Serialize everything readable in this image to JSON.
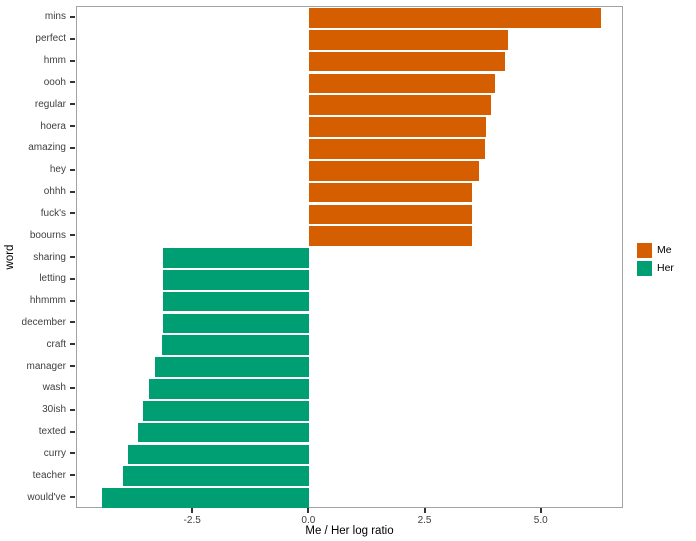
{
  "chart_data": {
    "type": "bar",
    "orientation": "horizontal",
    "title": "",
    "xlabel": "Me / Her log ratio",
    "ylabel": "word",
    "xlim": [
      -5.0,
      6.77
    ],
    "x_ticks": [
      -2.5,
      0,
      2.5,
      5
    ],
    "x_tick_labels": [
      "-2.5",
      "0.0",
      "2.5",
      "5.0"
    ],
    "grid": false,
    "panel_border_color": "#a3a3a3",
    "tick_color": "#333333",
    "legend": {
      "position": "right",
      "entries": [
        {
          "label": "Me",
          "color": "#D55E00"
        },
        {
          "label": "Her",
          "color": "#009E73"
        }
      ]
    },
    "bars": [
      {
        "word": "mins",
        "value": 6.28,
        "group": "Me"
      },
      {
        "word": "perfect",
        "value": 4.28,
        "group": "Me"
      },
      {
        "word": "hmm",
        "value": 4.22,
        "group": "Me"
      },
      {
        "word": "oooh",
        "value": 4.0,
        "group": "Me"
      },
      {
        "word": "regular",
        "value": 3.9,
        "group": "Me"
      },
      {
        "word": "hoera",
        "value": 3.8,
        "group": "Me"
      },
      {
        "word": "amazing",
        "value": 3.78,
        "group": "Me"
      },
      {
        "word": "hey",
        "value": 3.66,
        "group": "Me"
      },
      {
        "word": "ohhh",
        "value": 3.51,
        "group": "Me"
      },
      {
        "word": "fuck's",
        "value": 3.5,
        "group": "Me"
      },
      {
        "word": "boourns",
        "value": 3.5,
        "group": "Me"
      },
      {
        "word": "sharing",
        "value": -3.16,
        "group": "Her"
      },
      {
        "word": "letting",
        "value": -3.16,
        "group": "Her"
      },
      {
        "word": "hhmmm",
        "value": -3.16,
        "group": "Her"
      },
      {
        "word": "december",
        "value": -3.16,
        "group": "Her"
      },
      {
        "word": "craft",
        "value": -3.17,
        "group": "Her"
      },
      {
        "word": "manager",
        "value": -3.33,
        "group": "Her"
      },
      {
        "word": "wash",
        "value": -3.44,
        "group": "Her"
      },
      {
        "word": "30ish",
        "value": -3.59,
        "group": "Her"
      },
      {
        "word": "texted",
        "value": -3.68,
        "group": "Her"
      },
      {
        "word": "curry",
        "value": -3.91,
        "group": "Her"
      },
      {
        "word": "teacher",
        "value": -4.0,
        "group": "Her"
      },
      {
        "word": "would've",
        "value": -4.47,
        "group": "Her"
      }
    ]
  }
}
